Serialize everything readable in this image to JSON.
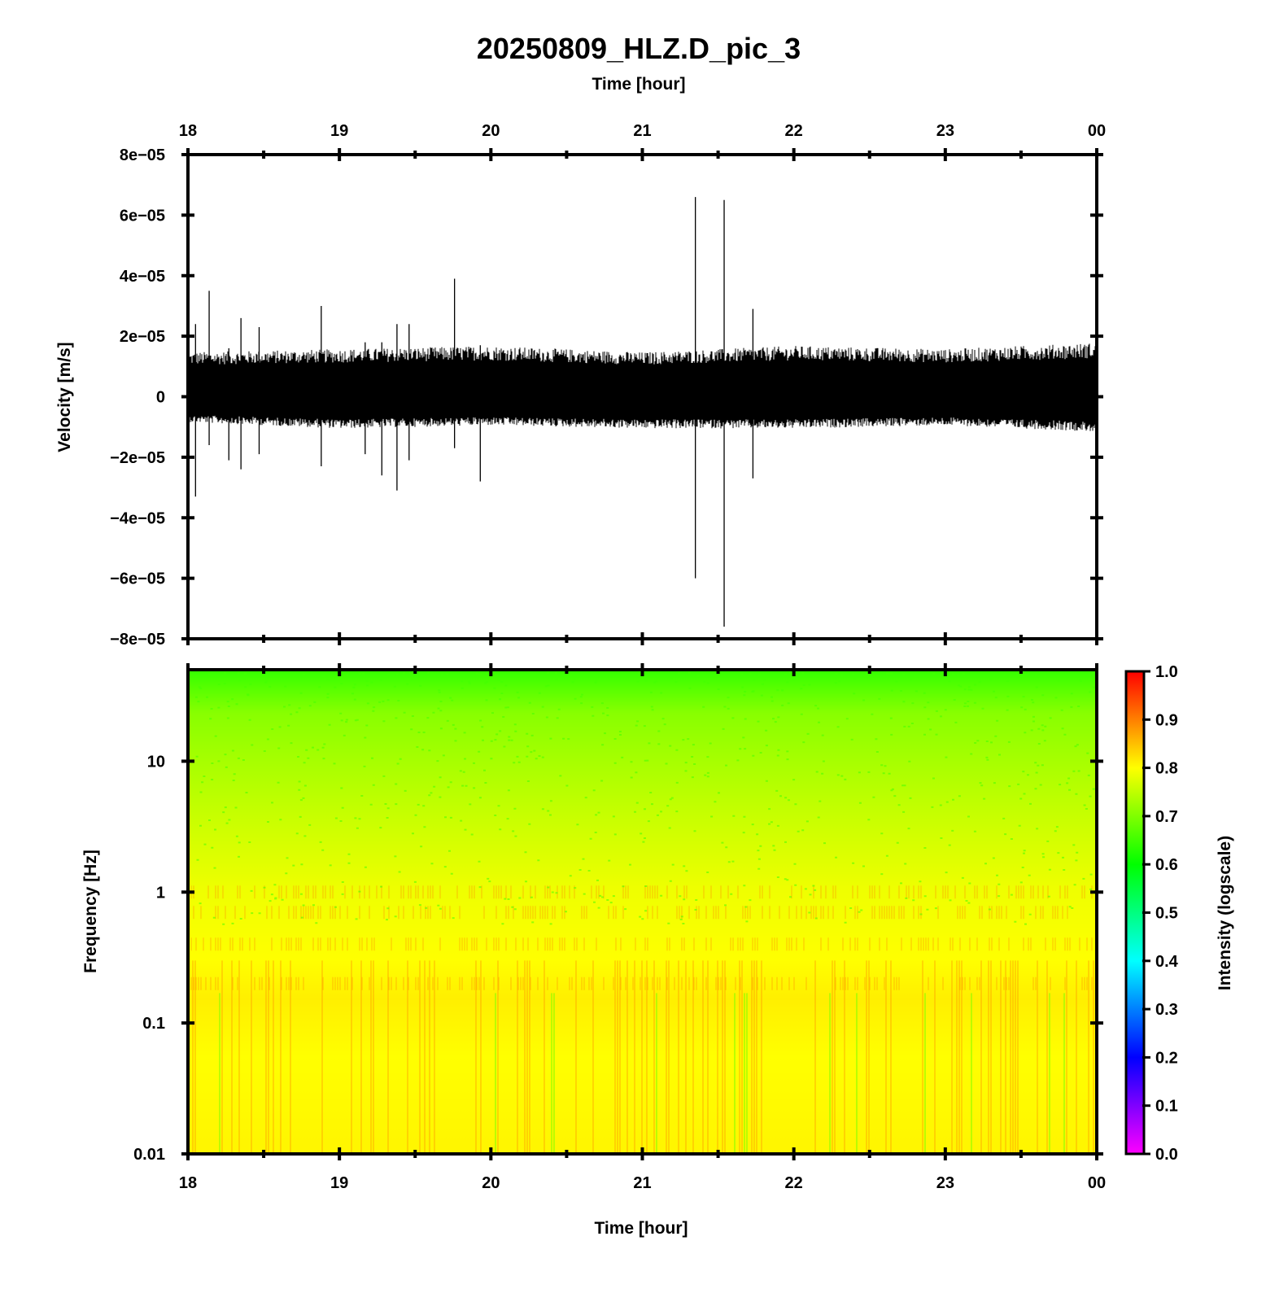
{
  "chart_data": [
    {
      "type": "line",
      "title": "20250809_HLZ.D_pic_3",
      "xlabel": "Time [hour]",
      "ylabel": "Velocity [m/s]",
      "x_ticks": [
        "18",
        "19",
        "20",
        "21",
        "22",
        "23",
        "00"
      ],
      "xlim_hours": [
        18,
        24
      ],
      "y_ticks": [
        "8e−05",
        "6e−05",
        "4e−05",
        "2e−05",
        "0",
        "−2e−05",
        "−4e−05",
        "−6e−05",
        "−8e−05"
      ],
      "ylim": [
        -8e-05,
        8e-05
      ],
      "series_color": "#000000",
      "noise_envelope": [
        {
          "hour": 18.0,
          "upper": 1.4e-05,
          "lower": -8e-06
        },
        {
          "hour": 19.0,
          "upper": 1.5e-05,
          "lower": -1e-05
        },
        {
          "hour": 20.0,
          "upper": 1.6e-05,
          "lower": -9e-06
        },
        {
          "hour": 21.0,
          "upper": 1.4e-05,
          "lower": -1e-05
        },
        {
          "hour": 22.0,
          "upper": 1.6e-05,
          "lower": -1e-05
        },
        {
          "hour": 23.0,
          "upper": 1.5e-05,
          "lower": -9e-06
        },
        {
          "hour": 24.0,
          "upper": 1.7e-05,
          "lower": -1.1e-05
        }
      ],
      "spikes": [
        {
          "hour": 18.05,
          "max": 2.4e-05,
          "min": -3.3e-05
        },
        {
          "hour": 18.14,
          "max": 3.5e-05,
          "min": -1.6e-05
        },
        {
          "hour": 18.27,
          "max": 1.6e-05,
          "min": -2.1e-05
        },
        {
          "hour": 18.35,
          "max": 2.6e-05,
          "min": -2.4e-05
        },
        {
          "hour": 18.47,
          "max": 2.3e-05,
          "min": -1.9e-05
        },
        {
          "hour": 18.88,
          "max": 3e-05,
          "min": -2.3e-05
        },
        {
          "hour": 19.17,
          "max": 1.8e-05,
          "min": -1.9e-05
        },
        {
          "hour": 19.28,
          "max": 1.8e-05,
          "min": -2.6e-05
        },
        {
          "hour": 19.38,
          "max": 2.4e-05,
          "min": -3.1e-05
        },
        {
          "hour": 19.46,
          "max": 2.4e-05,
          "min": -2.1e-05
        },
        {
          "hour": 19.76,
          "max": 3.9e-05,
          "min": -1.7e-05
        },
        {
          "hour": 19.93,
          "max": 1.7e-05,
          "min": -2.8e-05
        },
        {
          "hour": 21.35,
          "max": 6.6e-05,
          "min": -6e-05
        },
        {
          "hour": 21.54,
          "max": 6.5e-05,
          "min": -7.6e-05
        },
        {
          "hour": 21.73,
          "max": 2.9e-05,
          "min": -2.7e-05
        }
      ]
    },
    {
      "type": "heatmap",
      "xlabel": "Time [hour]",
      "ylabel": "Frequency [Hz]",
      "x_ticks": [
        "18",
        "19",
        "20",
        "21",
        "22",
        "23",
        "00"
      ],
      "xlim_hours": [
        18,
        24
      ],
      "y_ticks": [
        "10",
        "1",
        "0.1",
        "0.01"
      ],
      "y_scale": "log",
      "ylim_hz": [
        0.01,
        50
      ],
      "intensity_by_frequency": [
        {
          "hz": 0.01,
          "intensity": 0.79
        },
        {
          "hz": 0.2,
          "intensity": 0.82
        },
        {
          "hz": 1,
          "intensity": 0.79
        },
        {
          "hz": 5,
          "intensity": 0.74
        },
        {
          "hz": 20,
          "intensity": 0.69
        },
        {
          "hz": 50,
          "intensity": 0.64
        }
      ],
      "colorbar": {
        "label": "Intensity (logscale)",
        "ticks": [
          "1.0",
          "0.9",
          "0.8",
          "0.7",
          "0.6",
          "0.5",
          "0.4",
          "0.3",
          "0.2",
          "0.1",
          "0.0"
        ],
        "range": [
          0,
          1
        ],
        "stops": [
          "#ff00ff",
          "#0000ff",
          "#00ffff",
          "#00ff00",
          "#ffff00",
          "#ff0000"
        ]
      }
    }
  ]
}
